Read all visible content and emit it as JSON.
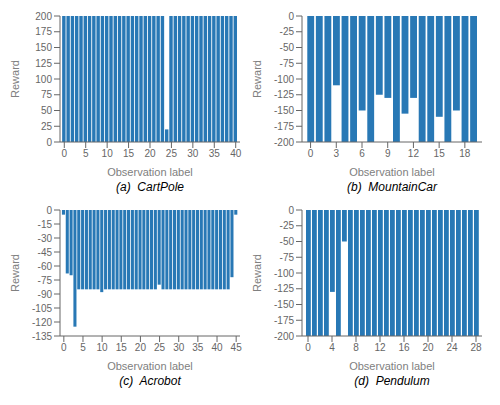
{
  "chart_data": [
    {
      "type": "bar",
      "title": "(a)  CartPole",
      "x_label": "Observation label",
      "y_label": "Reward",
      "x": [
        0,
        1,
        2,
        3,
        4,
        5,
        6,
        7,
        8,
        9,
        10,
        11,
        12,
        13,
        14,
        15,
        16,
        17,
        18,
        19,
        20,
        21,
        22,
        23,
        24,
        25,
        26,
        27,
        28,
        29,
        30,
        31,
        32,
        33,
        34,
        35,
        36,
        37,
        38,
        39,
        40
      ],
      "values": [
        200,
        200,
        200,
        200,
        200,
        200,
        200,
        200,
        200,
        200,
        200,
        200,
        200,
        200,
        200,
        200,
        200,
        200,
        200,
        200,
        200,
        200,
        200,
        200,
        20,
        200,
        200,
        200,
        200,
        200,
        200,
        200,
        200,
        200,
        200,
        200,
        200,
        200,
        200,
        200,
        200
      ],
      "xlim": [
        -1,
        41
      ],
      "xticks": [
        0,
        5,
        10,
        15,
        20,
        25,
        30,
        35,
        40
      ],
      "ylim": [
        0,
        200
      ],
      "yticks": [
        0,
        25,
        50,
        75,
        100,
        125,
        150,
        175,
        200
      ],
      "color": "#2878b5",
      "grid": false
    },
    {
      "type": "bar",
      "title": "(b)  MountainCar",
      "x_label": "Observation label",
      "y_label": "Reward",
      "x": [
        0,
        1,
        2,
        3,
        4,
        5,
        6,
        7,
        8,
        9,
        10,
        11,
        12,
        13,
        14,
        15,
        16,
        17,
        18,
        19
      ],
      "values": [
        -200,
        -200,
        -200,
        -110,
        -200,
        -200,
        -150,
        -200,
        -125,
        -130,
        -200,
        -155,
        -130,
        -200,
        -200,
        -160,
        -200,
        -150,
        -200,
        -200
      ],
      "xlim": [
        -1,
        20
      ],
      "xticks": [
        0,
        3,
        6,
        9,
        12,
        15,
        18
      ],
      "ylim": [
        -200,
        0
      ],
      "yticks": [
        0,
        -25,
        -50,
        -75,
        -100,
        -125,
        -150,
        -175,
        -200
      ],
      "color": "#2878b5",
      "grid": false
    },
    {
      "type": "bar",
      "title": "(c)  Acrobot",
      "x_label": "Observation label",
      "y_label": "Reward",
      "x": [
        0,
        1,
        2,
        3,
        4,
        5,
        6,
        7,
        8,
        9,
        10,
        11,
        12,
        13,
        14,
        15,
        16,
        17,
        18,
        19,
        20,
        21,
        22,
        23,
        24,
        25,
        26,
        27,
        28,
        29,
        30,
        31,
        32,
        33,
        34,
        35,
        36,
        37,
        38,
        39,
        40,
        41,
        42,
        43,
        44,
        45
      ],
      "values": [
        -5,
        -68,
        -70,
        -125,
        -85,
        -85,
        -85,
        -85,
        -85,
        -85,
        -88,
        -85,
        -85,
        -85,
        -85,
        -85,
        -85,
        -85,
        -85,
        -85,
        -85,
        -85,
        -85,
        -85,
        -85,
        -80,
        -85,
        -85,
        -85,
        -85,
        -85,
        -85,
        -85,
        -85,
        -85,
        -85,
        -85,
        -85,
        -85,
        -85,
        -85,
        -85,
        -85,
        -85,
        -72,
        -5
      ],
      "xlim": [
        -1,
        46
      ],
      "xticks": [
        0,
        5,
        10,
        15,
        20,
        25,
        30,
        35,
        40,
        45
      ],
      "ylim": [
        -135,
        0
      ],
      "yticks": [
        0,
        -15,
        -30,
        -45,
        -60,
        -75,
        -90,
        -105,
        -120,
        -135
      ],
      "color": "#2878b5",
      "grid": false
    },
    {
      "type": "bar",
      "title": "(d)  Pendulum",
      "x_label": "Observation label",
      "y_label": "Reward",
      "x": [
        0,
        1,
        2,
        3,
        4,
        5,
        6,
        7,
        8,
        9,
        10,
        11,
        12,
        13,
        14,
        15,
        16,
        17,
        18,
        19,
        20,
        21,
        22,
        23,
        24,
        25,
        26,
        27,
        28
      ],
      "values": [
        -200,
        -200,
        -200,
        -200,
        -130,
        -200,
        -50,
        -200,
        -200,
        -200,
        -200,
        -200,
        -200,
        -200,
        -200,
        -200,
        -200,
        -200,
        -200,
        -200,
        -200,
        -200,
        -200,
        -200,
        -200,
        -200,
        -200,
        -200,
        -200
      ],
      "xlim": [
        -1,
        29
      ],
      "xticks": [
        0,
        4,
        8,
        12,
        16,
        20,
        24,
        28
      ],
      "ylim": [
        -200,
        0
      ],
      "yticks": [
        0,
        -25,
        -50,
        -75,
        -100,
        -125,
        -150,
        -175,
        -200
      ],
      "color": "#2878b5",
      "grid": false
    }
  ]
}
